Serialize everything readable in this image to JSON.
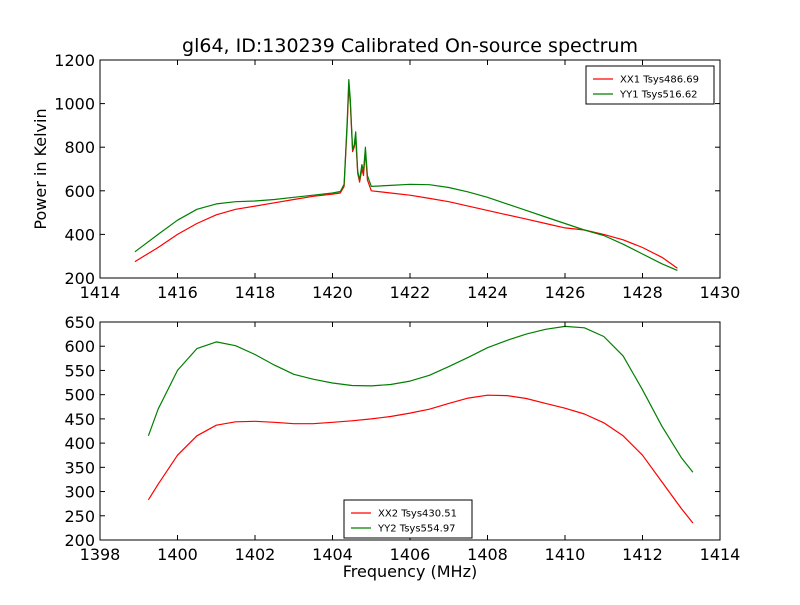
{
  "chart_data": [
    {
      "type": "line",
      "title": "gl64, ID:130239 Calibrated On-source spectrum",
      "xlabel": "",
      "ylabel": "Power in Kelvin",
      "xlim": [
        1414,
        1430
      ],
      "ylim": [
        200,
        1200
      ],
      "xticks": [
        1414,
        1416,
        1418,
        1420,
        1422,
        1424,
        1426,
        1428,
        1430
      ],
      "yticks": [
        200,
        400,
        600,
        800,
        1000,
        1200
      ],
      "legend_position": "upper-right",
      "grid": false,
      "series": [
        {
          "name": "XX1 Tsys486.69",
          "color": "#ff0000",
          "x": [
            1414.9,
            1415.5,
            1416.0,
            1416.5,
            1417.0,
            1417.5,
            1418.0,
            1418.5,
            1419.0,
            1419.5,
            1420.0,
            1420.2,
            1420.3,
            1420.38,
            1420.42,
            1420.46,
            1420.52,
            1420.56,
            1420.6,
            1420.65,
            1420.7,
            1420.76,
            1420.8,
            1420.85,
            1420.9,
            1421.0,
            1421.5,
            1422.0,
            1422.5,
            1423.0,
            1423.5,
            1424.0,
            1424.5,
            1425.0,
            1425.5,
            1426.0,
            1426.5,
            1427.0,
            1427.5,
            1428.0,
            1428.5,
            1428.9
          ],
          "values": [
            275,
            340,
            400,
            450,
            490,
            515,
            530,
            545,
            560,
            575,
            585,
            590,
            620,
            900,
            1080,
            1000,
            780,
            800,
            840,
            680,
            640,
            700,
            670,
            780,
            650,
            600,
            590,
            580,
            565,
            550,
            530,
            510,
            490,
            470,
            450,
            430,
            420,
            400,
            375,
            340,
            295,
            245
          ]
        },
        {
          "name": "YY1 Tsys516.62",
          "color": "#008000",
          "x": [
            1414.9,
            1415.5,
            1416.0,
            1416.5,
            1417.0,
            1417.5,
            1418.0,
            1418.5,
            1419.0,
            1419.5,
            1420.0,
            1420.2,
            1420.3,
            1420.38,
            1420.42,
            1420.46,
            1420.52,
            1420.56,
            1420.6,
            1420.65,
            1420.7,
            1420.76,
            1420.8,
            1420.85,
            1420.9,
            1421.0,
            1421.5,
            1422.0,
            1422.5,
            1423.0,
            1423.5,
            1424.0,
            1424.5,
            1425.0,
            1425.5,
            1426.0,
            1426.5,
            1427.0,
            1427.5,
            1428.0,
            1428.5,
            1428.9
          ],
          "values": [
            320,
            400,
            465,
            515,
            540,
            550,
            553,
            560,
            570,
            580,
            590,
            597,
            630,
            920,
            1110,
            1020,
            790,
            810,
            870,
            690,
            650,
            720,
            690,
            800,
            670,
            620,
            625,
            630,
            628,
            615,
            595,
            570,
            540,
            510,
            480,
            450,
            420,
            395,
            355,
            310,
            265,
            235
          ]
        }
      ]
    },
    {
      "type": "line",
      "title": "",
      "xlabel": "Frequency (MHz)",
      "ylabel": "",
      "xlim": [
        1398,
        1414
      ],
      "ylim": [
        200,
        650
      ],
      "xticks": [
        1398,
        1400,
        1402,
        1404,
        1406,
        1408,
        1410,
        1412,
        1414
      ],
      "yticks": [
        200,
        250,
        300,
        350,
        400,
        450,
        500,
        550,
        600,
        650
      ],
      "legend_position": "lower-center",
      "grid": false,
      "series": [
        {
          "name": "XX2 Tsys430.51",
          "color": "#ff0000",
          "x": [
            1399.25,
            1399.5,
            1400.0,
            1400.5,
            1401.0,
            1401.5,
            1402.0,
            1402.5,
            1403.0,
            1403.5,
            1404.0,
            1404.5,
            1405.0,
            1405.5,
            1406.0,
            1406.5,
            1407.0,
            1407.5,
            1408.0,
            1408.5,
            1409.0,
            1409.5,
            1410.0,
            1410.5,
            1411.0,
            1411.5,
            1412.0,
            1412.5,
            1413.0,
            1413.3
          ],
          "values": [
            283,
            315,
            375,
            415,
            437,
            444,
            445,
            443,
            440,
            440,
            443,
            446,
            450,
            455,
            462,
            470,
            482,
            493,
            499,
            498,
            492,
            482,
            472,
            460,
            442,
            415,
            375,
            320,
            265,
            235
          ]
        },
        {
          "name": "YY2 Tsys554.97",
          "color": "#008000",
          "x": [
            1399.25,
            1399.5,
            1400.0,
            1400.5,
            1401.0,
            1401.5,
            1402.0,
            1402.5,
            1403.0,
            1403.5,
            1404.0,
            1404.5,
            1405.0,
            1405.5,
            1406.0,
            1406.5,
            1407.0,
            1407.5,
            1408.0,
            1408.5,
            1409.0,
            1409.5,
            1410.0,
            1410.5,
            1411.0,
            1411.5,
            1412.0,
            1412.5,
            1413.0,
            1413.3
          ],
          "values": [
            415,
            470,
            550,
            595,
            609,
            601,
            583,
            561,
            542,
            532,
            524,
            519,
            518,
            521,
            528,
            540,
            558,
            577,
            597,
            612,
            625,
            635,
            641,
            638,
            620,
            580,
            510,
            435,
            370,
            340
          ]
        }
      ]
    }
  ]
}
